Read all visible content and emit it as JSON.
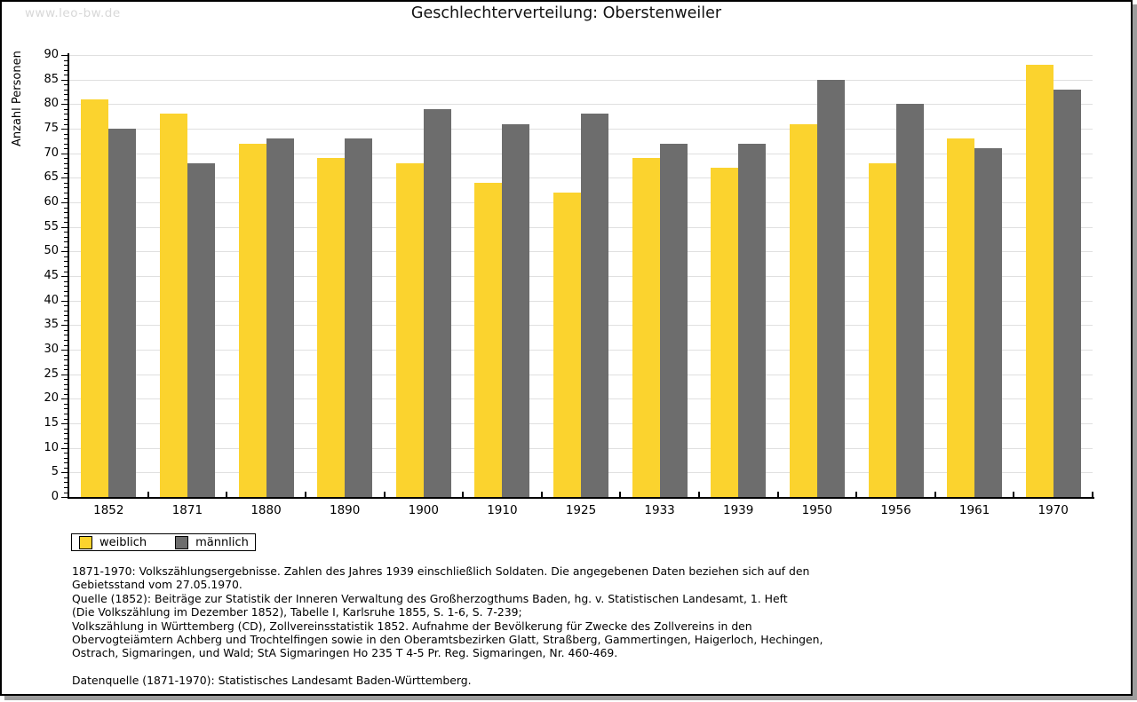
{
  "watermark": "www.leo-bw.de",
  "title": "Geschlechterverteilung: Oberstenweiler",
  "chart_data": {
    "type": "bar",
    "title": "Geschlechterverteilung: Oberstenweiler",
    "xlabel": "",
    "ylabel": "Anzahl Personen",
    "categories": [
      "1852",
      "1871",
      "1880",
      "1890",
      "1900",
      "1910",
      "1925",
      "1933",
      "1939",
      "1950",
      "1956",
      "1961",
      "1970"
    ],
    "series": [
      {
        "name": "weiblich",
        "color": "#fbd32e",
        "values": [
          81,
          78,
          72,
          69,
          68,
          64,
          62,
          69,
          67,
          76,
          68,
          73,
          88
        ]
      },
      {
        "name": "männlich",
        "color": "#6d6d6d",
        "values": [
          75,
          68,
          73,
          73,
          79,
          76,
          78,
          72,
          72,
          85,
          80,
          71,
          83
        ]
      }
    ],
    "ylim": [
      0,
      90
    ],
    "ytick_step": 5,
    "minor_tick_step": 1,
    "grid": "horizontal",
    "gridline_color": "#e0e0e0",
    "legend_position": "bottom-left"
  },
  "footnotes": {
    "lines": [
      "1871-1970: Volkszählungsergebnisse. Zahlen des Jahres 1939 einschließlich Soldaten. Die angegebenen Daten beziehen sich auf den",
      "Gebietsstand vom 27.05.1970.",
      "Quelle (1852): Beiträge zur Statistik der Inneren Verwaltung des Großherzogthums Baden, hg. v. Statistischen Landesamt, 1. Heft",
      "(Die Volkszählung im Dezember 1852), Tabelle I, Karlsruhe 1855, S. 1-6, S. 7-239;",
      "Volkszählung in Württemberg (CD), Zollvereinsstatistik 1852. Aufnahme der Bevölkerung für Zwecke des Zollvereins in den",
      "Obervogteiämtern Achberg und Trochtelfingen sowie in den Oberamtsbezirken Glatt, Straßberg, Gammertingen, Haigerloch, Hechingen,",
      "Ostrach, Sigmaringen, und Wald; StA Sigmaringen Ho 235 T 4-5 Pr. Reg. Sigmaringen, Nr. 460-469."
    ],
    "source": "Datenquelle (1871-1970): Statistisches Landesamt Baden-Württemberg."
  }
}
